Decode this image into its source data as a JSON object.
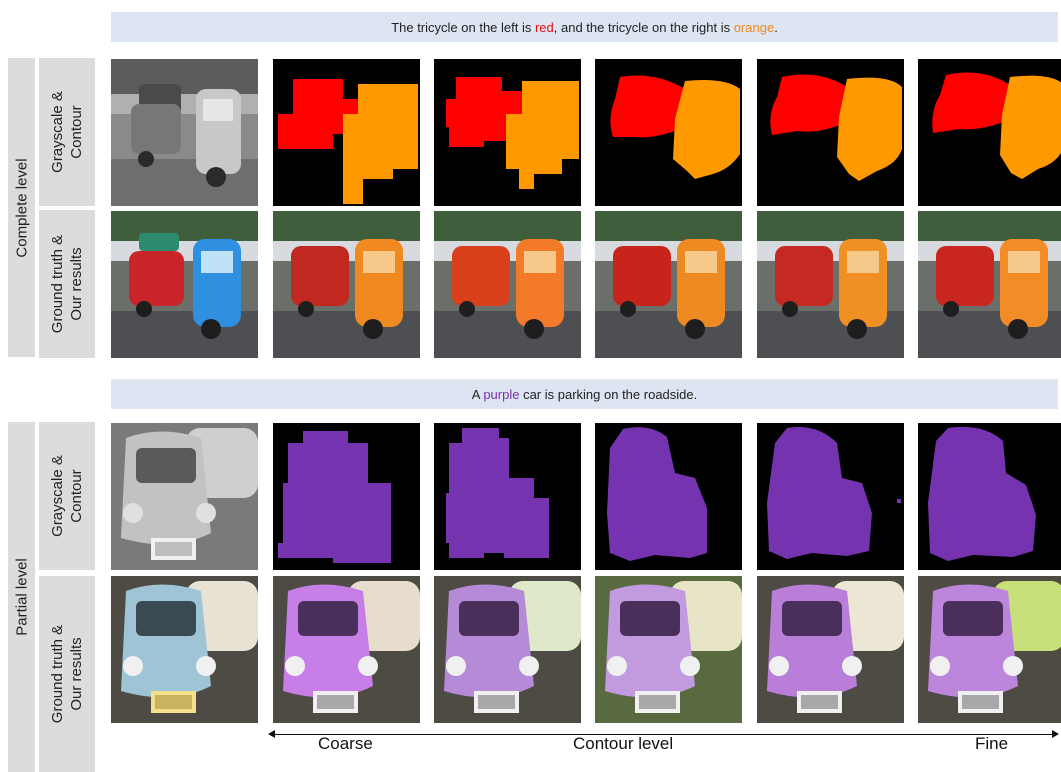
{
  "caption_top": {
    "prefix": "The tricycle on the left is ",
    "word1": "red",
    "middle": ", and the tricycle on the right is ",
    "word2": "orange",
    "suffix": ".",
    "word1_color": "#e81010",
    "word2_color": "#f08a1e"
  },
  "caption_bottom": {
    "prefix": "A ",
    "word1": "purple",
    "suffix": " car is parking on the roadside.",
    "word1_color": "#7a2fa8"
  },
  "levels": {
    "complete": "Complete level",
    "partial": "Partial level"
  },
  "row_labels": {
    "grayscale_line1": "Grayscale &",
    "grayscale_line2": "Contour",
    "gt_line1": "Ground truth &",
    "gt_line2": "Our results"
  },
  "axis": {
    "left": "Coarse",
    "center": "Contour level",
    "right": "Fine"
  },
  "colors": {
    "mask_red": "#ff0000",
    "mask_orange": "#ff9900",
    "mask_purple": "#7533b0",
    "banner_bg": "#dde5f2",
    "label_bg": "#dcdcdc"
  }
}
